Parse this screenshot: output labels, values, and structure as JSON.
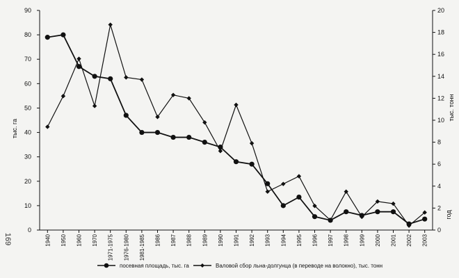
{
  "page_number": "169",
  "chart_data": {
    "type": "line",
    "categories": [
      "1940",
      "1950",
      "1960",
      "1970",
      "1971-1975",
      "1976-1980",
      "1981-1985",
      "1986",
      "1987",
      "1988",
      "1989",
      "1990",
      "1991",
      "1992",
      "1993",
      "1994",
      "1995",
      "1996",
      "1997",
      "1998",
      "1999",
      "2000",
      "2001",
      "2002",
      "2003"
    ],
    "series": [
      {
        "name": "посевная площадь, тыс. га",
        "axis": "left",
        "marker": "circle",
        "values": [
          79,
          80,
          67,
          63,
          62,
          47,
          40,
          40,
          38,
          38,
          36,
          34,
          28,
          27,
          19,
          10,
          13.5,
          5.5,
          4,
          7.5,
          6,
          7.5,
          7.5,
          2.5,
          4.5
        ]
      },
      {
        "name": "Валовой сбор льна-долгунца (в переводе на волокно), тыс. тонн",
        "axis": "right",
        "marker": "diamond",
        "values": [
          9.4,
          12.2,
          15.6,
          11.3,
          18.7,
          13.9,
          13.7,
          10.3,
          12.3,
          12.0,
          9.8,
          7.2,
          11.4,
          7.9,
          3.5,
          4.2,
          4.9,
          2.2,
          0.9,
          3.5,
          1.2,
          2.6,
          2.4,
          0.4,
          1.6
        ]
      }
    ],
    "left_axis": {
      "label": "тыс. га",
      "min": 0,
      "max": 90,
      "ticks": [
        0,
        10,
        20,
        30,
        40,
        50,
        60,
        70,
        80,
        90
      ]
    },
    "right_axis": {
      "label": "тыс. тонн",
      "min": 0,
      "max": 20,
      "ticks": [
        0,
        2,
        4,
        6,
        8,
        10,
        12,
        14,
        16,
        18,
        20
      ]
    },
    "x_end_label": "год",
    "legend_position": "bottom"
  }
}
